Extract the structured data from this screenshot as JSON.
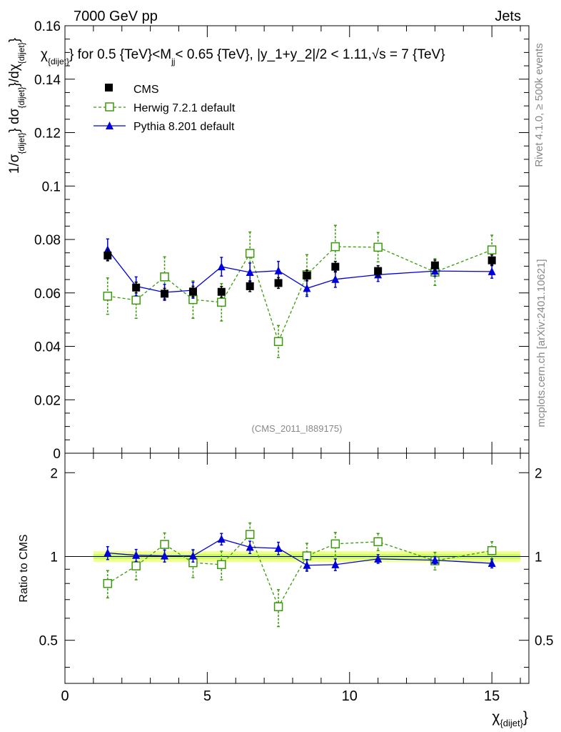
{
  "header": {
    "energy_label": "7000 GeV pp",
    "category_label": "Jets",
    "watermark_left_id": "(CMS_2011_I889175)",
    "side_version": "Rivet 4.1.0, ≥ 500k events",
    "side_site": "mcplots.cern.ch [arXiv:2401.10621]"
  },
  "colors": {
    "cms": "#000000",
    "herwig": "#3a9a0a",
    "pythia": "#0000dd",
    "band_outer": "#f0ff90",
    "band_inner": "#c8ff60"
  },
  "chart_data": [
    {
      "type": "scatter",
      "title": "χ_{dijet} for 0.5 {TeV}<M_jj< 0.65 {TeV}, |y_1+y_2|/2 < 1.11,√s = 7 {TeV}",
      "title_parts": {
        "chi": "χ",
        "chi_sub": "{dijet}",
        "part1": "} for 0.5 {TeV}<M",
        "m_sub": "jj",
        "part2": "< 0.65 {TeV}, |y_1+y_2|/2 < 1.11,",
        "sqrt": "√",
        "part3": "s = 7 {TeV}"
      },
      "ylabel_parts": {
        "a": "1/σ",
        "a_sub": "{dijet}",
        "b": "} dσ",
        "b_sub": "{dijet}",
        "c": "}/dχ",
        "c_sub": "{dijet}",
        "d": "}"
      },
      "xlim": [
        0,
        16.3
      ],
      "ylim": [
        0,
        0.16
      ],
      "y_tick_labels": [
        "0",
        "0.02",
        "0.04",
        "0.06",
        "0.08",
        "0.1",
        "0.12",
        "0.14",
        "0.16"
      ],
      "legend": [
        "CMS",
        "Herwig 7.2.1 default",
        "Pythia 8.201 default"
      ],
      "x": [
        1.5,
        2.5,
        3.5,
        4.5,
        5.5,
        6.5,
        7.5,
        8.5,
        9.5,
        11,
        13,
        15
      ],
      "series": [
        {
          "name": "CMS",
          "values": [
            0.074,
            0.062,
            0.0597,
            0.0605,
            0.0604,
            0.0625,
            0.0637,
            0.0665,
            0.0698,
            0.0682,
            0.0703,
            0.0722
          ],
          "errors": [
            0.002,
            0.002,
            0.002,
            0.002,
            0.002,
            0.002,
            0.002,
            0.002,
            0.002,
            0.002,
            0.002,
            0.002
          ]
        },
        {
          "name": "Herwig 7.2.1 default",
          "values": [
            0.0588,
            0.0573,
            0.066,
            0.0575,
            0.0565,
            0.0748,
            0.0418,
            0.0668,
            0.0773,
            0.0771,
            0.0678,
            0.0761
          ],
          "errors": [
            0.0068,
            0.0068,
            0.0075,
            0.007,
            0.007,
            0.008,
            0.006,
            0.0075,
            0.008,
            0.0055,
            0.005,
            0.0055
          ]
        },
        {
          "name": "Pythia 8.201 default",
          "values": [
            0.0762,
            0.0625,
            0.0602,
            0.061,
            0.0698,
            0.0677,
            0.0683,
            0.0617,
            0.0651,
            0.0668,
            0.0682,
            0.068
          ],
          "errors": [
            0.004,
            0.0035,
            0.003,
            0.003,
            0.0035,
            0.0035,
            0.0035,
            0.003,
            0.003,
            0.0025,
            0.002,
            0.0025
          ]
        }
      ]
    },
    {
      "type": "scatter",
      "title": "",
      "ylabel": "Ratio to CMS",
      "xlabel": "χ",
      "xlabel_sub": "{dijet}",
      "xlim": [
        0,
        16.3
      ],
      "ylim": [
        0.35,
        2.35
      ],
      "y_tick_labels": [
        "0.5",
        "1",
        "2"
      ],
      "y_tick_values": [
        0.5,
        1,
        2
      ],
      "x_tick_labels": [
        "0",
        "5",
        "10",
        "15"
      ],
      "x_tick_values": [
        0,
        5,
        10,
        15
      ],
      "band_x_range": [
        1,
        16
      ],
      "band_outer_halfwidth": 0.045,
      "band_inner_halfwidth": 0.02,
      "x": [
        1.5,
        2.5,
        3.5,
        4.5,
        5.5,
        6.5,
        7.5,
        8.5,
        9.5,
        11,
        13,
        15
      ],
      "series": [
        {
          "name": "Herwig 7.2.1 default",
          "values": [
            0.8,
            0.925,
            1.105,
            0.95,
            0.935,
            1.2,
            0.66,
            1.005,
            1.11,
            1.13,
            0.965,
            1.05
          ],
          "errors": [
            0.09,
            0.1,
            0.11,
            0.11,
            0.11,
            0.12,
            0.1,
            0.11,
            0.11,
            0.08,
            0.07,
            0.08
          ]
        },
        {
          "name": "Pythia 8.201 default",
          "values": [
            1.03,
            1.01,
            1.005,
            1.005,
            1.155,
            1.08,
            1.07,
            0.93,
            0.935,
            0.98,
            0.97,
            0.945
          ],
          "errors": [
            0.055,
            0.05,
            0.05,
            0.05,
            0.055,
            0.055,
            0.055,
            0.045,
            0.045,
            0.035,
            0.03,
            0.035
          ]
        }
      ]
    }
  ]
}
